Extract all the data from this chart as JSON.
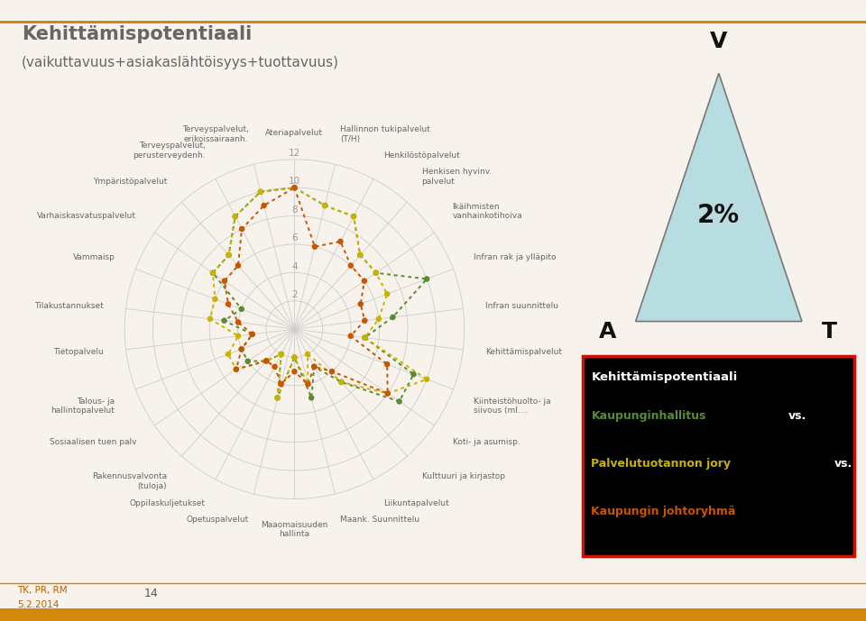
{
  "title_line1": "Kehittämispotentiaali",
  "title_line2": "(vaikuttavuus+asiakaslähtöisyys+tuottavuus)",
  "bg_color": "#f7f3ec",
  "categories": [
    "Ateriapalvelut",
    "Hallinnon tukipalvelut\n(T/H)",
    "Henkilöstöpalvelut",
    "Henkisen hyvinv.\npalvelut",
    "Ikäihmisten\nvanhainkotihoiva",
    "Infran rak ja ylläpito",
    "Infran suunnittelu",
    "Kehittämispalvelut",
    "Kiinteistöhuolto- ja\nsiivous (ml....",
    "Koti- ja asumisp.",
    "Kulttuuri ja kirjastop",
    "Liikuntapalvelut",
    "Maank. Suunnittelu",
    "Maaomaisuuden\nhallinta",
    "Opetuspalvelut",
    "Oppilaskuljetukset",
    "Rakennusvalvonta\n(tuloja)",
    "Sosiaalisen tuen palv",
    "Talous- ja\nhallintopalvelut",
    "Tietopalvelu",
    "Tilakustannukset",
    "Vammaisp",
    "Varhaiskasvatuspalvelut",
    "Ympäristöpalvelut",
    "Terveyspalvelut,\nperusterveydenh.",
    "Terveyspalvelut,\nerikoissairaanh."
  ],
  "green": [
    10,
    9,
    9,
    7,
    7,
    10,
    7,
    5,
    9,
    9,
    5,
    3,
    5,
    2,
    5,
    2,
    3,
    4,
    4,
    3,
    5,
    4,
    7,
    7,
    9,
    10
  ],
  "yellow": [
    10,
    9,
    9,
    7,
    7,
    7,
    6,
    5,
    10,
    8,
    5,
    2,
    4,
    2,
    5,
    2,
    3,
    5,
    5,
    4,
    6,
    6,
    7,
    7,
    9,
    10
  ],
  "orange": [
    10,
    6,
    7,
    6,
    6,
    5,
    5,
    4,
    7,
    8,
    4,
    3,
    4,
    3,
    4,
    3,
    3,
    5,
    4,
    3,
    4,
    5,
    6,
    6,
    8,
    9
  ],
  "color_green": "#5a8a35",
  "color_yellow": "#c8b400",
  "color_orange": "#c85500",
  "max_val": 12,
  "grid_levels": [
    2,
    4,
    6,
    8,
    10,
    12
  ],
  "legend_title": "Kehittämispotentiaali",
  "leg1_colored": "Kaupunginhallitus",
  "leg1_color": "#5a8a35",
  "leg2_colored": "Palvelutuotannon jory",
  "leg2_color": "#c8b400",
  "leg3_colored": "Kaupungin johtoryhmä",
  "leg3_color": "#c85500",
  "vs_text": "vs.",
  "footer_label1": "TK, PR, RM",
  "footer_label2": "5.2.2014",
  "footer_page": "14",
  "orange_color": "#d4880a",
  "title_color": "#666666",
  "label_color": "#666666",
  "grid_color": "#cccccc",
  "grid_label_color": "#999999"
}
